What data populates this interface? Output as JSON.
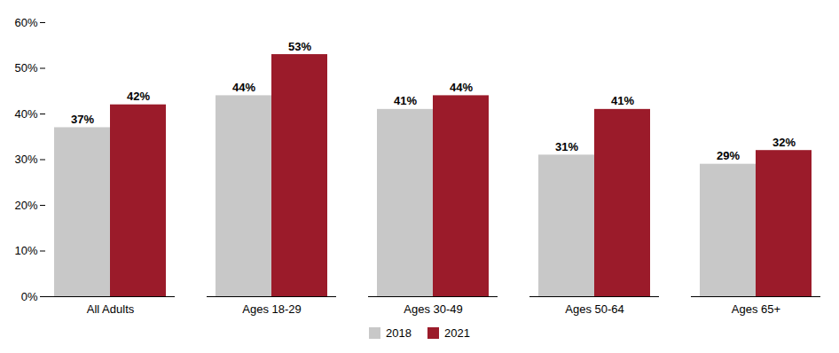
{
  "chart_data": {
    "type": "bar",
    "categories": [
      "All Adults",
      "Ages 18-29",
      "Ages 30-49",
      "Ages 50-64",
      "Ages 65+"
    ],
    "series": [
      {
        "name": "2018",
        "color": "#c8c8c8",
        "values": [
          37,
          44,
          41,
          31,
          29
        ],
        "value_labels": [
          "37%",
          "44%",
          "41%",
          "31%",
          "29%"
        ]
      },
      {
        "name": "2021",
        "color": "#9b1b2a",
        "values": [
          42,
          53,
          44,
          41,
          32
        ],
        "value_labels": [
          "42%",
          "53%",
          "44%",
          "41%",
          "32%"
        ]
      }
    ],
    "ylim": [
      0,
      60
    ],
    "yticks": [
      {
        "value": 0,
        "label": "0%"
      },
      {
        "value": 10,
        "label": "10%"
      },
      {
        "value": 20,
        "label": "20%"
      },
      {
        "value": 30,
        "label": "30%"
      },
      {
        "value": 40,
        "label": "40%"
      },
      {
        "value": 50,
        "label": "50%"
      },
      {
        "value": 60,
        "label": "60%"
      }
    ],
    "grid": false,
    "legend": "bottom",
    "data_labels": true
  }
}
